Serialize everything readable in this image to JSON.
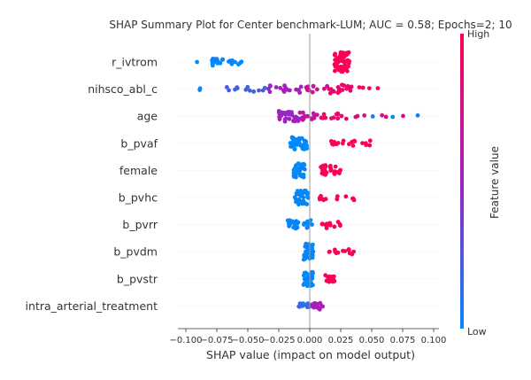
{
  "chart_data": {
    "type": "scatter",
    "subtype": "shap-beeswarm",
    "title": "SHAP Summary Plot for Center benchmark-LUM; AUC = 0.58; Epochs=2; 10",
    "xlabel": "SHAP value (impact on model output)",
    "xlim": [
      -0.105,
      0.105
    ],
    "x_ticks": [
      -0.1,
      -0.075,
      -0.05,
      -0.025,
      0.0,
      0.025,
      0.05,
      0.075,
      0.1
    ],
    "x_tick_labels": [
      "−0.100",
      "−0.075",
      "−0.050",
      "−0.025",
      "0.000",
      "0.025",
      "0.050",
      "0.075",
      "0.100"
    ],
    "grid": false,
    "colorbar": {
      "label": "Feature value",
      "high_label": "High",
      "low_label": "Low",
      "low_color": "#008bfb",
      "mid_color": "#a020c0",
      "high_color": "#ff0052"
    },
    "features": [
      {
        "name": "r_ivtrom",
        "clusters": [
          {
            "xmin": -0.091,
            "xmax": -0.091,
            "n": 1,
            "color": 0.0,
            "spread": 1
          },
          {
            "xmin": -0.08,
            "xmax": -0.07,
            "n": 14,
            "color": 0.0,
            "spread": 4
          },
          {
            "xmin": -0.066,
            "xmax": -0.053,
            "n": 10,
            "color": 0.0,
            "spread": 3
          },
          {
            "xmin": 0.02,
            "xmax": 0.032,
            "n": 60,
            "color": 1.0,
            "spread": 11
          }
        ]
      },
      {
        "name": "nihsco_abl_c",
        "clusters": [
          {
            "xmin": -0.093,
            "xmax": -0.082,
            "n": 2,
            "color": 0.05,
            "spread": 1
          },
          {
            "xmin": -0.07,
            "xmax": -0.035,
            "n": 12,
            "color": 0.2,
            "spread": 3
          },
          {
            "xmin": -0.035,
            "xmax": -0.003,
            "n": 16,
            "color": 0.5,
            "spread": 4
          },
          {
            "xmin": -0.003,
            "xmax": 0.015,
            "n": 12,
            "color": 0.7,
            "spread": 4
          },
          {
            "xmin": 0.015,
            "xmax": 0.035,
            "n": 20,
            "color": 0.9,
            "spread": 5
          },
          {
            "xmin": 0.035,
            "xmax": 0.056,
            "n": 4,
            "color": 1.0,
            "spread": 2
          }
        ]
      },
      {
        "name": "age",
        "clusters": [
          {
            "xmin": -0.025,
            "xmax": -0.008,
            "n": 30,
            "color": 0.5,
            "spread": 6
          },
          {
            "xmin": -0.008,
            "xmax": 0.008,
            "n": 14,
            "color": 0.65,
            "spread": 5
          },
          {
            "xmin": 0.008,
            "xmax": 0.03,
            "n": 12,
            "color": 0.9,
            "spread": 3
          },
          {
            "xmin": 0.03,
            "xmax": 0.078,
            "n": 6,
            "color": 0.8,
            "spread": 1
          },
          {
            "xmin": 0.045,
            "xmax": 0.096,
            "n": 3,
            "color": 0.05,
            "spread": 1
          }
        ]
      },
      {
        "name": "b_pvaf",
        "clusters": [
          {
            "xmin": -0.016,
            "xmax": -0.002,
            "n": 40,
            "color": 0.0,
            "spread": 7
          },
          {
            "xmin": 0.015,
            "xmax": 0.05,
            "n": 18,
            "color": 1.0,
            "spread": 3
          }
        ]
      },
      {
        "name": "female",
        "clusters": [
          {
            "xmin": -0.013,
            "xmax": -0.004,
            "n": 36,
            "color": 0.0,
            "spread": 8
          },
          {
            "xmin": 0.008,
            "xmax": 0.025,
            "n": 30,
            "color": 1.0,
            "spread": 6
          }
        ]
      },
      {
        "name": "b_pvhc",
        "clusters": [
          {
            "xmin": -0.012,
            "xmax": -0.001,
            "n": 40,
            "color": 0.0,
            "spread": 8
          },
          {
            "xmin": 0.008,
            "xmax": 0.037,
            "n": 12,
            "color": 1.0,
            "spread": 3
          }
        ]
      },
      {
        "name": "b_pvrr",
        "clusters": [
          {
            "xmin": -0.018,
            "xmax": 0.002,
            "n": 30,
            "color": 0.0,
            "spread": 5
          },
          {
            "xmin": 0.008,
            "xmax": 0.025,
            "n": 14,
            "color": 1.0,
            "spread": 4
          }
        ]
      },
      {
        "name": "b_pvdm",
        "clusters": [
          {
            "xmin": -0.005,
            "xmax": 0.003,
            "n": 40,
            "color": 0.0,
            "spread": 9
          },
          {
            "xmin": 0.015,
            "xmax": 0.036,
            "n": 14,
            "color": 1.0,
            "spread": 3
          }
        ]
      },
      {
        "name": "b_pvstr",
        "clusters": [
          {
            "xmin": -0.005,
            "xmax": 0.003,
            "n": 30,
            "color": 0.0,
            "spread": 8
          },
          {
            "xmin": 0.012,
            "xmax": 0.02,
            "n": 14,
            "color": 1.0,
            "spread": 4
          }
        ]
      },
      {
        "name": "intra_arterial_treatment",
        "clusters": [
          {
            "xmin": -0.01,
            "xmax": 0.0,
            "n": 14,
            "color": 0.15,
            "spread": 3
          },
          {
            "xmin": 0.0,
            "xmax": 0.012,
            "n": 18,
            "color": 0.55,
            "spread": 4
          }
        ]
      }
    ]
  }
}
